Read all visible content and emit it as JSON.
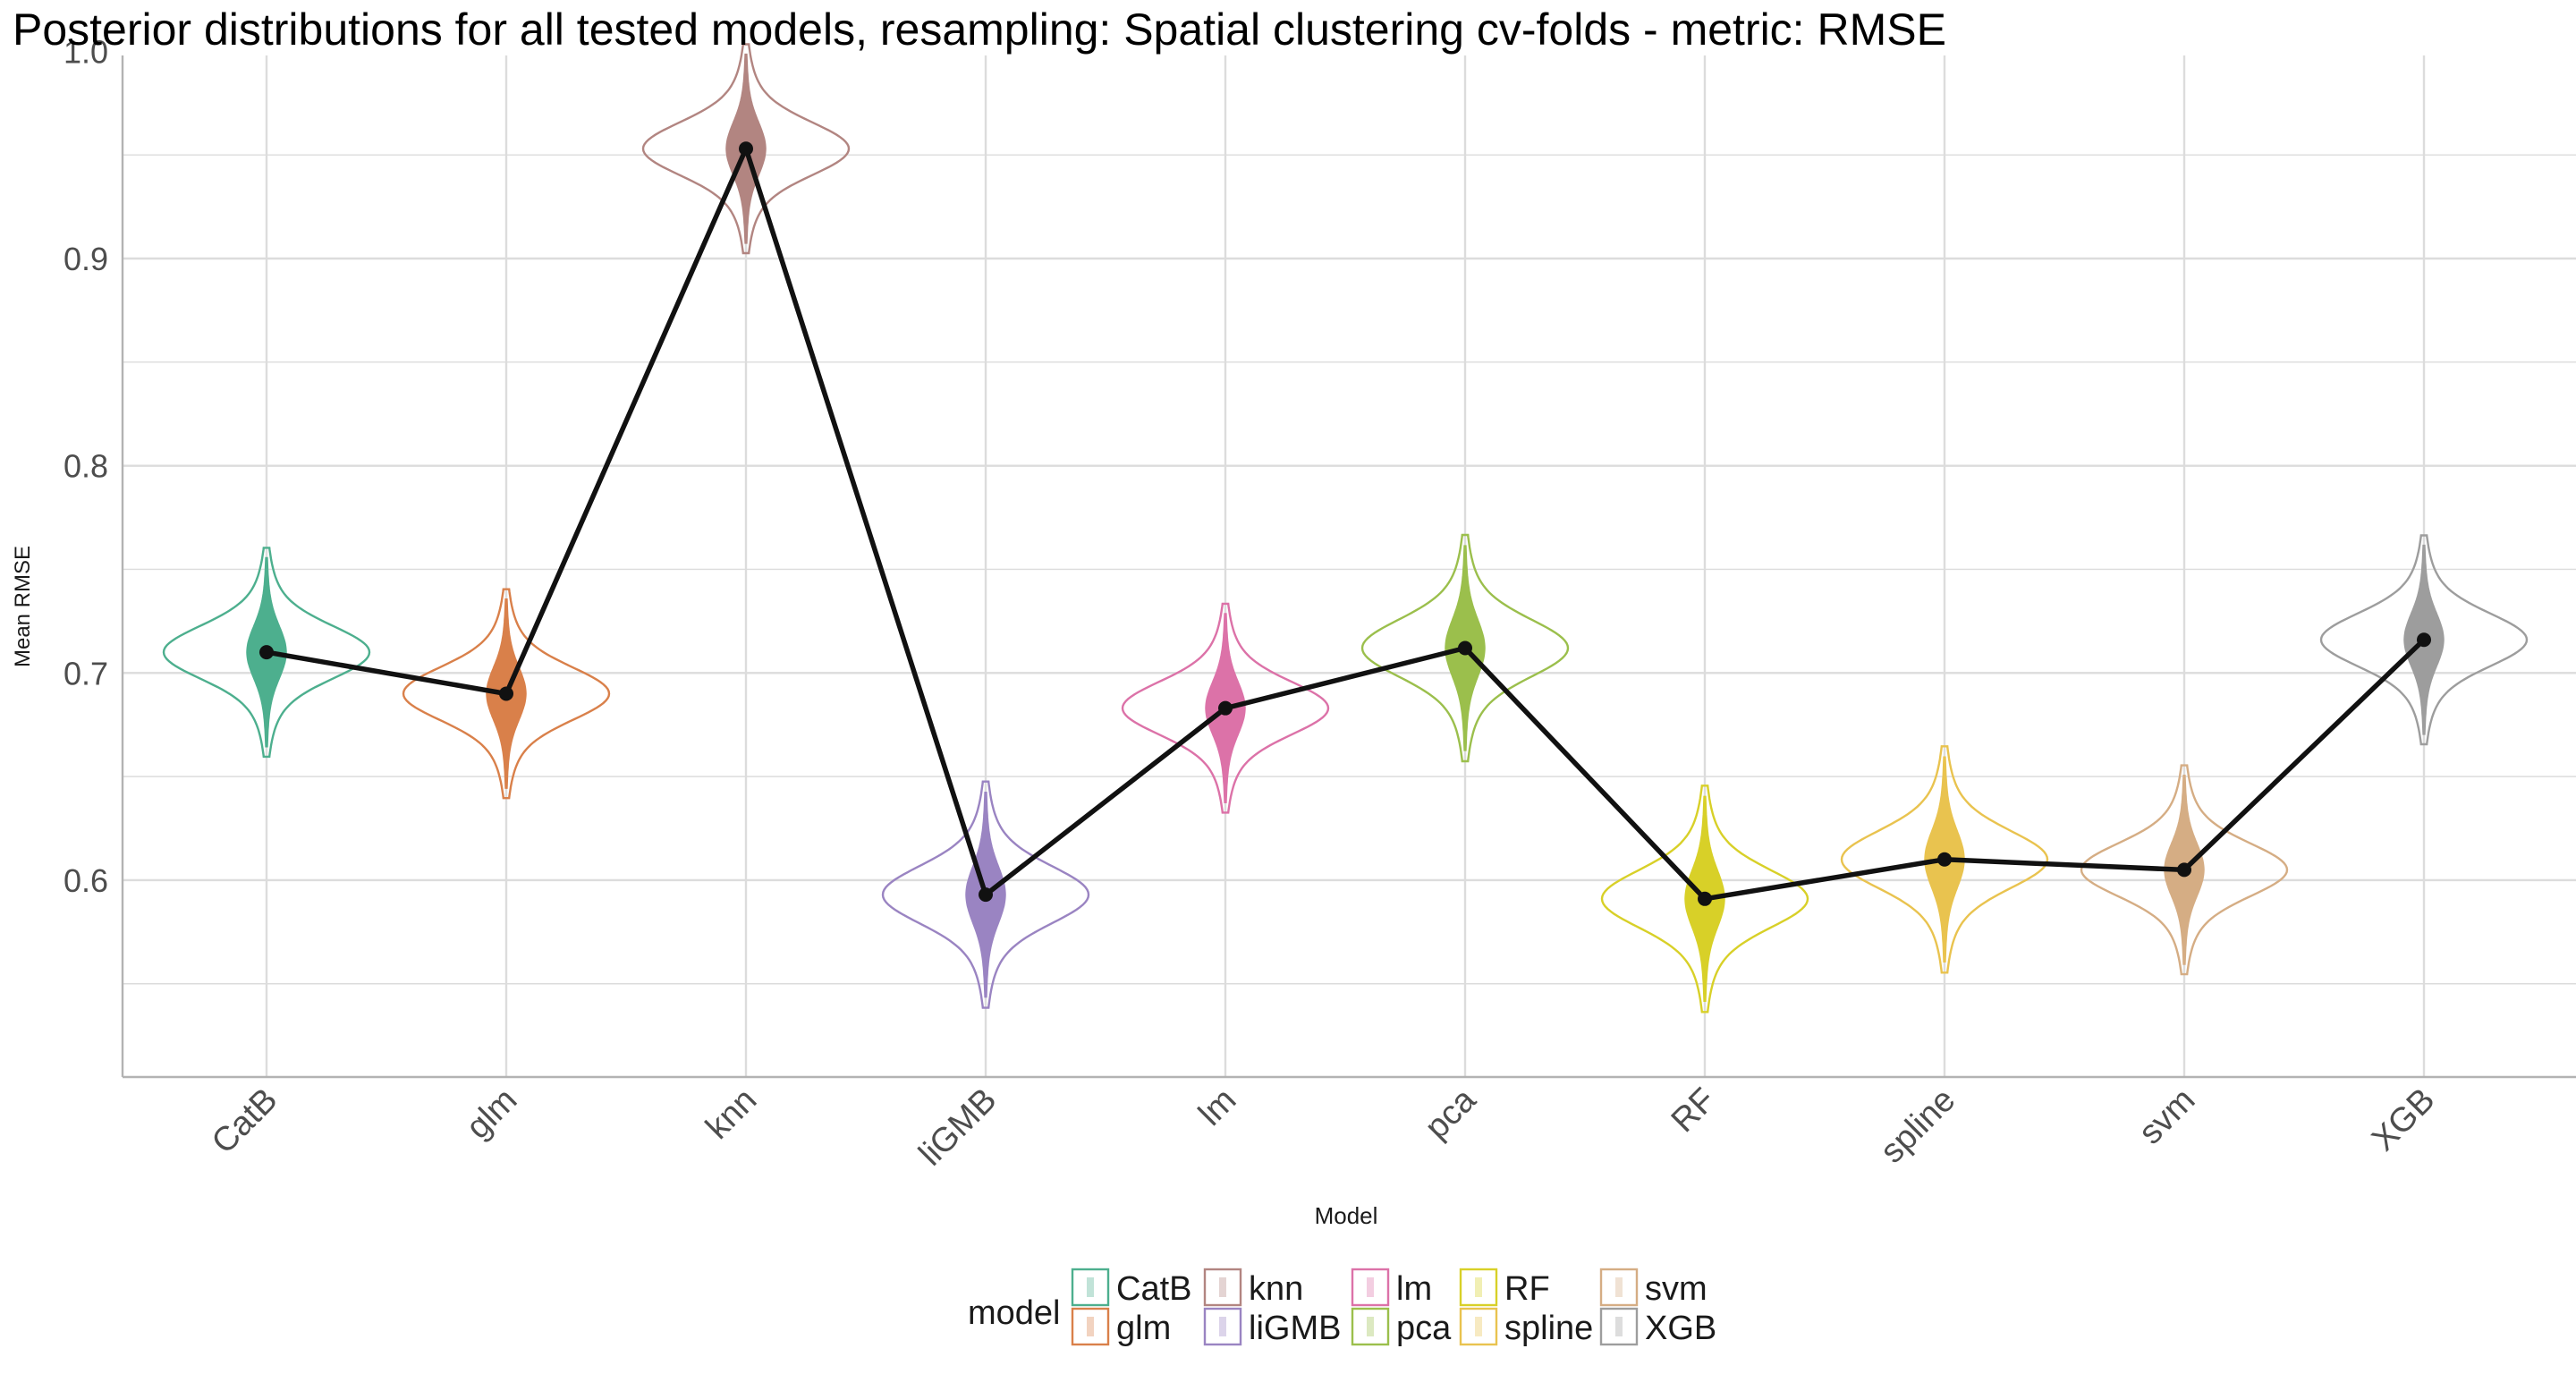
{
  "chart_data": {
    "type": "violin",
    "title": "Posterior distributions for all tested models, resampling: Spatial clustering cv-folds - metric: RMSE",
    "xlabel": "Model",
    "ylabel": "Mean RMSE",
    "ylim": [
      0.505,
      0.998
    ],
    "yticks": [
      0.6,
      0.7,
      0.8,
      0.9,
      1.0
    ],
    "ytick_labels": [
      "0.6",
      "0.7",
      "0.8",
      "0.9",
      "1.0"
    ],
    "grid": true,
    "categories": [
      "CatB",
      "glm",
      "knn",
      "liGMB",
      "lm",
      "pca",
      "RF",
      "spline",
      "svm",
      "XGB"
    ],
    "means": [
      0.71,
      0.69,
      0.953,
      0.593,
      0.683,
      0.712,
      0.591,
      0.61,
      0.605,
      0.716
    ],
    "sd": [
      0.012,
      0.012,
      0.012,
      0.013,
      0.012,
      0.013,
      0.013,
      0.013,
      0.012,
      0.012
    ],
    "legend": {
      "title": "model",
      "placement": "bottom",
      "entries": [
        "CatB",
        "glm",
        "knn",
        "liGMB",
        "lm",
        "pca",
        "RF",
        "spline",
        "svm",
        "XGB"
      ]
    },
    "colors": {
      "CatB": "#4daf8e",
      "glm": "#d9804a",
      "knn": "#b28581",
      "liGMB": "#9a84c2",
      "lm": "#dc72a8",
      "pca": "#9bbf4c",
      "RF": "#d8d028",
      "spline": "#e9c34f",
      "svm": "#d5ad84",
      "XGB": "#9d9d9d"
    },
    "line_color": "#111111"
  }
}
